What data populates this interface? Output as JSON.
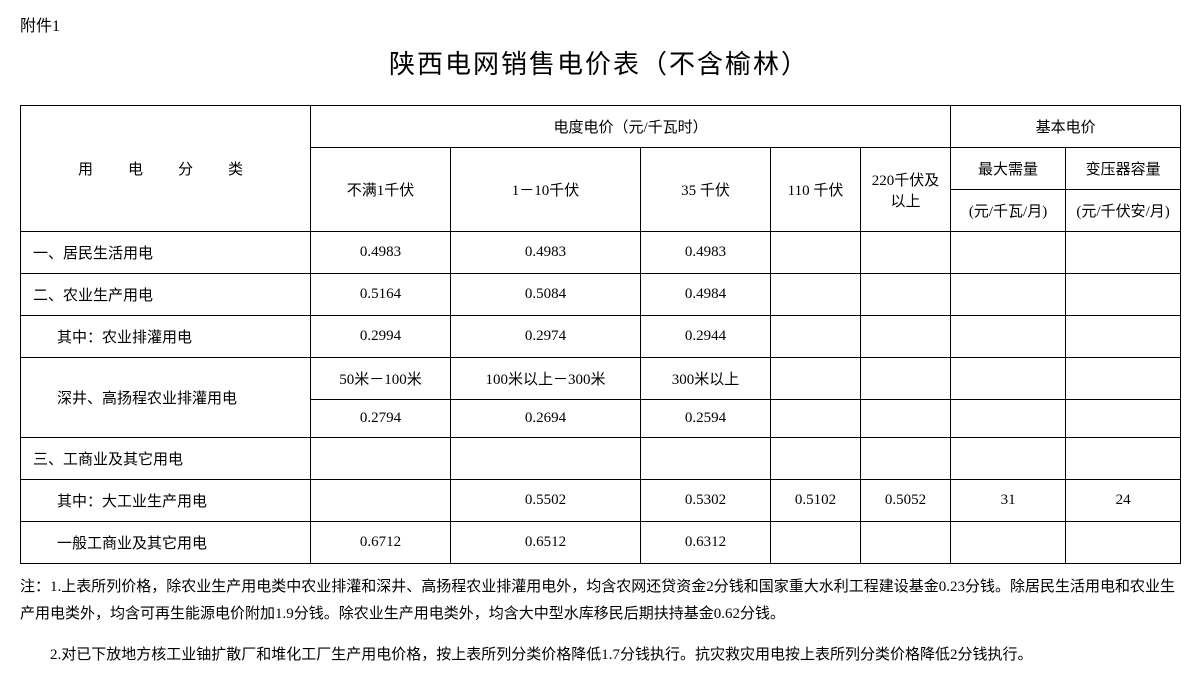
{
  "attachment_label": "附件1",
  "title": "陕西电网销售电价表（不含榆林）",
  "headers": {
    "category": "用　电　分　类",
    "energy_price_group": "电度电价（元/千瓦时）",
    "basic_price_group": "基本电价",
    "v1": "不满1千伏",
    "v2": "1－10千伏",
    "v3": "35 千伏",
    "v4": "110 千伏",
    "v5": "220千伏及以上",
    "b1_top": "最大需量",
    "b1_bot": "(元/千瓦/月)",
    "b2_top": "变压器容量",
    "b2_bot": "(元/千伏安/月)"
  },
  "rows": {
    "r1": {
      "cat": "一、居民生活用电",
      "v1": "0.4983",
      "v2": "0.4983",
      "v3": "0.4983",
      "v4": "",
      "v5": "",
      "b1": "",
      "b2": ""
    },
    "r2": {
      "cat": "二、农业生产用电",
      "v1": "0.5164",
      "v2": "0.5084",
      "v3": "0.4984",
      "v4": "",
      "v5": "",
      "b1": "",
      "b2": ""
    },
    "r3": {
      "cat": "其中：农业排灌用电",
      "v1": "0.2994",
      "v2": "0.2974",
      "v3": "0.2944",
      "v4": "",
      "v5": "",
      "b1": "",
      "b2": ""
    },
    "r4a": {
      "cat": "深井、高扬程农业排灌用电",
      "v1": "50米－100米",
      "v2": "100米以上－300米",
      "v3": "300米以上",
      "v4": "",
      "v5": "",
      "b1": "",
      "b2": ""
    },
    "r4b": {
      "v1": "0.2794",
      "v2": "0.2694",
      "v3": "0.2594",
      "v4": "",
      "v5": "",
      "b1": "",
      "b2": ""
    },
    "r5": {
      "cat": "三、工商业及其它用电",
      "v1": "",
      "v2": "",
      "v3": "",
      "v4": "",
      "v5": "",
      "b1": "",
      "b2": ""
    },
    "r6": {
      "cat": "其中：大工业生产用电",
      "v1": "",
      "v2": "0.5502",
      "v3": "0.5302",
      "v4": "0.5102",
      "v5": "0.5052",
      "b1": "31",
      "b2": "24"
    },
    "r7": {
      "cat": "一般工商业及其它用电",
      "v1": "0.6712",
      "v2": "0.6512",
      "v3": "0.6312",
      "v4": "",
      "v5": "",
      "b1": "",
      "b2": ""
    }
  },
  "footnotes": {
    "n1": "注：1.上表所列价格，除农业生产用电类中农业排灌和深井、高扬程农业排灌用电外，均含农网还贷资金2分钱和国家重大水利工程建设基金0.23分钱。除居民生活用电和农业生产用电类外，均含可再生能源电价附加1.9分钱。除农业生产用电类外，均含大中型水库移民后期扶持基金0.62分钱。",
    "n2": "2.对已下放地方核工业铀扩散厂和堆化工厂生产用电价格，按上表所列分类价格降低1.7分钱执行。抗灾救灾用电按上表所列分类价格降低2分钱执行。"
  }
}
